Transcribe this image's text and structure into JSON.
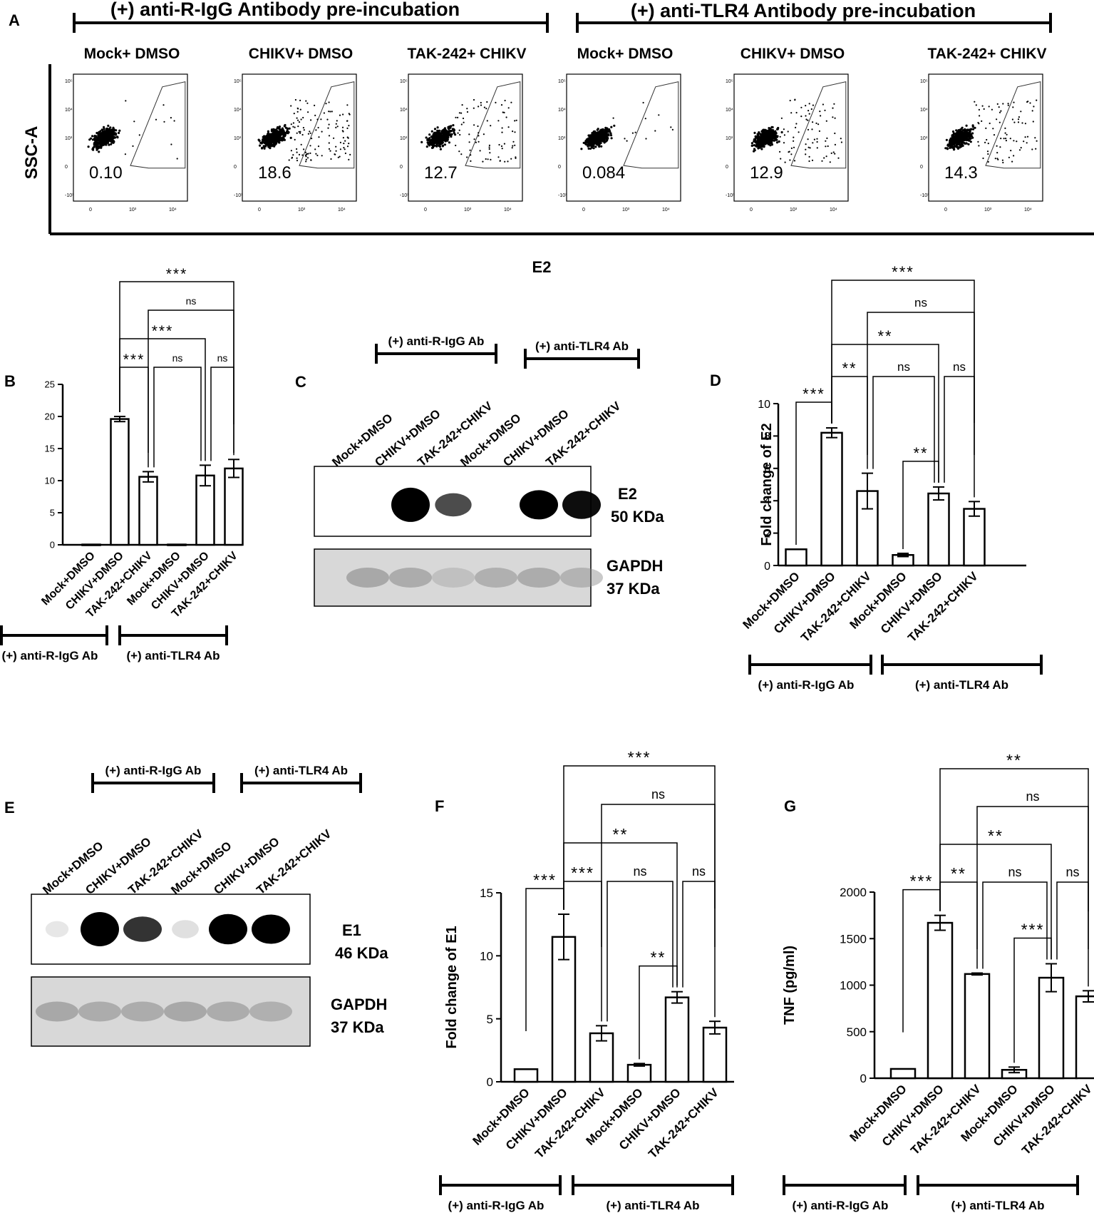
{
  "categories": [
    "Mock+DMSO",
    "CHIKV+DMSO",
    "TAK-242+CHIKV",
    "Mock+DMSO",
    "CHIKV+DMSO",
    "TAK-242+CHIKV"
  ],
  "panel_a": {
    "letter": "A",
    "group1_title": "(+) anti-R-IgG Antibody pre-incubation",
    "group2_title": "(+) anti-TLR4 Antibody pre-incubation",
    "ylabel": "SSC-A",
    "plots": [
      {
        "label": "Mock+ DMSO",
        "value": "0.10"
      },
      {
        "label": "CHIKV+ DMSO",
        "value": "18.6"
      },
      {
        "label": "TAK-242+ CHIKV",
        "value": "12.7"
      },
      {
        "label": "Mock+ DMSO",
        "value": "0.084"
      },
      {
        "label": "CHIKV+ DMSO",
        "value": "12.9"
      },
      {
        "label": "TAK-242+ CHIKV",
        "value": "14.3"
      }
    ]
  },
  "center_title": "E2",
  "blot_c": {
    "letter": "C",
    "group1": "(+) anti-R-IgG Ab",
    "group2": "(+) anti-TLR4 Ab",
    "lanes": [
      "Mock+DMSO",
      "CHIKV+DMSO",
      "TAK-242+CHIKV",
      "Mock+DMSO",
      "CHIKV+DMSO",
      "TAK-242+CHIKV"
    ],
    "band1_name": "E2",
    "band1_size": "50 KDa",
    "band2_name": "GAPDH",
    "band2_size": "37 KDa"
  },
  "blot_e": {
    "letter": "E",
    "group1": "(+) anti-R-IgG Ab",
    "group2": "(+) anti-TLR4 Ab",
    "lanes": [
      "Mock+DMSO",
      "CHIKV+DMSO",
      "TAK-242+CHIKV",
      "Mock+DMSO",
      "CHIKV+DMSO",
      "TAK-242+CHIKV"
    ],
    "band1_name": "E1",
    "band1_size": "46 KDa",
    "band2_name": "GAPDH",
    "band2_size": "37 KDa"
  },
  "chart_data": [
    {
      "id": "B",
      "type": "bar",
      "letter": "B",
      "categories": [
        "Mock+DMSO",
        "CHIKV+DMSO",
        "TAK-242+CHIKV",
        "Mock+DMSO",
        "CHIKV+DMSO",
        "TAK-242+CHIKV"
      ],
      "values": [
        0.05,
        19.6,
        10.6,
        0.05,
        10.8,
        11.9
      ],
      "errors": [
        0,
        0.4,
        0.8,
        0,
        1.6,
        1.4
      ],
      "ylim": [
        0,
        25
      ],
      "yticks": [
        "0",
        "5",
        "10",
        "15",
        "20",
        "25"
      ],
      "ylabel": "",
      "group1": "(+) anti-R-IgG Ab",
      "group2": "(+) anti-TLR4 Ab",
      "comparisons": [
        {
          "a": 1,
          "b": 2,
          "label": "***"
        },
        {
          "a": 2,
          "b": 4,
          "label": "ns"
        },
        {
          "a": 4,
          "b": 5,
          "label": "ns"
        },
        {
          "a": 1,
          "b": 4,
          "label": "***"
        },
        {
          "a": 2,
          "b": 5,
          "label": "ns"
        },
        {
          "a": 1,
          "b": 5,
          "label": "***"
        }
      ]
    },
    {
      "id": "D",
      "type": "bar",
      "letter": "D",
      "categories": [
        "Mock+DMSO",
        "CHIKV+DMSO",
        "TAK-242+CHIKV",
        "Mock+DMSO",
        "CHIKV+DMSO",
        "TAK-242+CHIKV"
      ],
      "values": [
        1.0,
        8.2,
        4.6,
        0.65,
        4.45,
        3.5
      ],
      "errors": [
        0,
        0.3,
        1.1,
        0.1,
        0.4,
        0.45
      ],
      "ylim": [
        0,
        10
      ],
      "yticks": [
        "0",
        "2",
        "4",
        "6",
        "8",
        "10"
      ],
      "ylabel": "Fold change of E2",
      "group1": "(+) anti-R-IgG Ab",
      "group2": "(+) anti-TLR4 Ab",
      "comparisons": [
        {
          "a": 0,
          "b": 1,
          "label": "***"
        },
        {
          "a": 3,
          "b": 4,
          "label": "**"
        },
        {
          "a": 1,
          "b": 2,
          "label": "**"
        },
        {
          "a": 2,
          "b": 4,
          "label": "ns"
        },
        {
          "a": 4,
          "b": 5,
          "label": "ns"
        },
        {
          "a": 1,
          "b": 4,
          "label": "**"
        },
        {
          "a": 2,
          "b": 5,
          "label": "ns"
        },
        {
          "a": 1,
          "b": 5,
          "label": "***"
        }
      ]
    },
    {
      "id": "F",
      "type": "bar",
      "letter": "F",
      "categories": [
        "Mock+DMSO",
        "CHIKV+DMSO",
        "TAK-242+CHIKV",
        "Mock+DMSO",
        "CHIKV+DMSO",
        "TAK-242+CHIKV"
      ],
      "values": [
        1.0,
        11.5,
        3.85,
        1.35,
        6.7,
        4.3
      ],
      "errors": [
        0,
        1.8,
        0.6,
        0.1,
        0.45,
        0.5
      ],
      "ylim": [
        0,
        15
      ],
      "yticks": [
        "0",
        "5",
        "10",
        "15"
      ],
      "ylabel": "Fold change of E1",
      "group1": "(+) anti-R-IgG Ab",
      "group2": "(+) anti-TLR4 Ab",
      "comparisons": [
        {
          "a": 0,
          "b": 1,
          "label": "***"
        },
        {
          "a": 3,
          "b": 4,
          "label": "**"
        },
        {
          "a": 1,
          "b": 2,
          "label": "***"
        },
        {
          "a": 2,
          "b": 4,
          "label": "ns"
        },
        {
          "a": 4,
          "b": 5,
          "label": "ns"
        },
        {
          "a": 1,
          "b": 4,
          "label": "**"
        },
        {
          "a": 2,
          "b": 5,
          "label": "ns"
        },
        {
          "a": 1,
          "b": 5,
          "label": "***"
        }
      ]
    },
    {
      "id": "G",
      "type": "bar",
      "letter": "G",
      "categories": [
        "Mock+DMSO",
        "CHIKV+DMSO",
        "TAK-242+CHIKV",
        "Mock+DMSO",
        "CHIKV+DMSO",
        "TAK-242+CHIKV"
      ],
      "values": [
        100,
        1670,
        1120,
        90,
        1080,
        880
      ],
      "errors": [
        0,
        80,
        10,
        30,
        150,
        60
      ],
      "ylim": [
        0,
        2000
      ],
      "yticks": [
        "0",
        "500",
        "1000",
        "1500",
        "2000"
      ],
      "ylabel": "TNF (pg/ml)",
      "group1": "(+) anti-R-IgG Ab",
      "group2": "(+) anti-TLR4 Ab",
      "comparisons": [
        {
          "a": 0,
          "b": 1,
          "label": "***"
        },
        {
          "a": 3,
          "b": 4,
          "label": "***"
        },
        {
          "a": 1,
          "b": 2,
          "label": "**"
        },
        {
          "a": 2,
          "b": 4,
          "label": "ns"
        },
        {
          "a": 4,
          "b": 5,
          "label": "ns"
        },
        {
          "a": 1,
          "b": 4,
          "label": "**"
        },
        {
          "a": 2,
          "b": 5,
          "label": "ns"
        },
        {
          "a": 1,
          "b": 5,
          "label": "**"
        }
      ]
    }
  ]
}
